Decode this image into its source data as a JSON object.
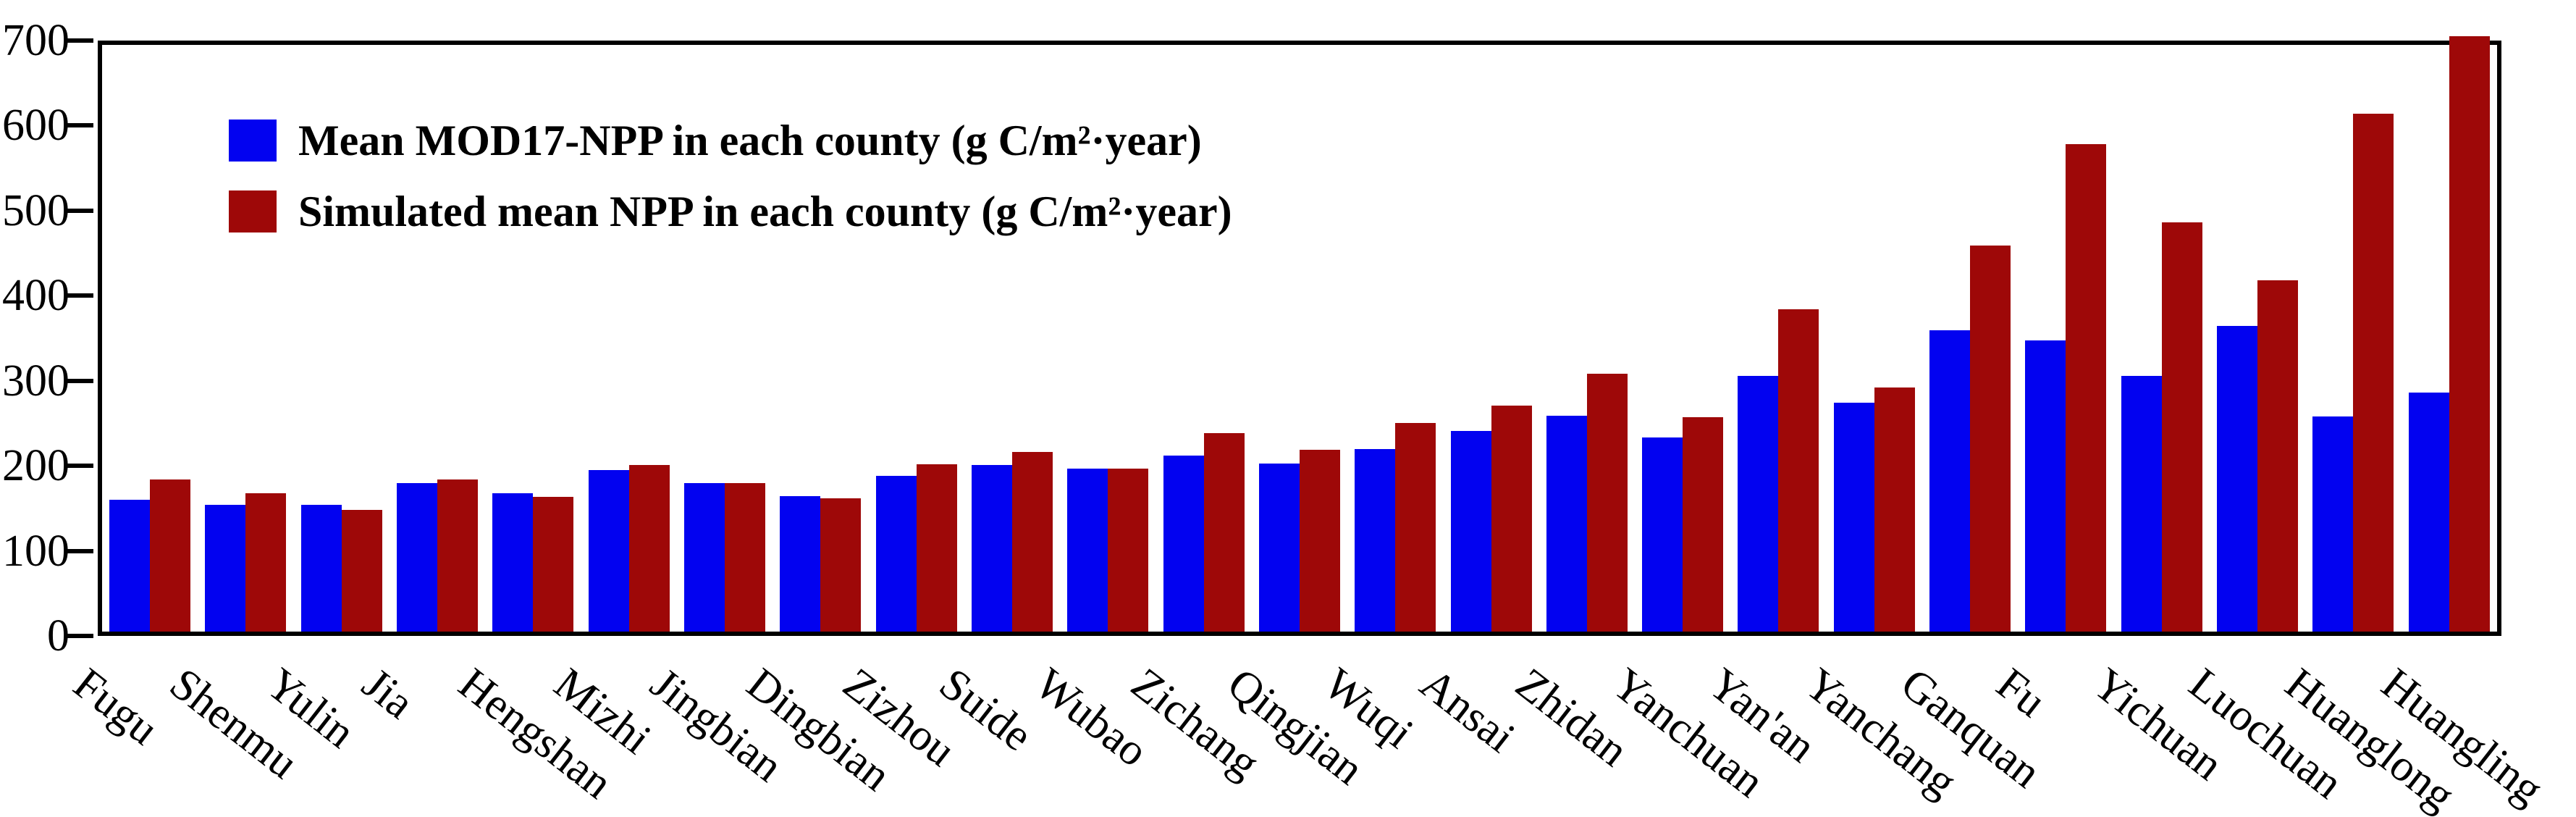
{
  "figure": {
    "background": "#ffffff",
    "axis_color": "#000000"
  },
  "legend": {
    "position": "top-left-inside",
    "items": [
      {
        "label": "Mean MOD17-NPP in each county (g C/m²·year)",
        "color": "#0202f0"
      },
      {
        "label": "Simulated mean NPP in each county (g C/m²·year)",
        "color": "#9e0808"
      }
    ]
  },
  "chart_data": {
    "type": "bar",
    "title": "",
    "xlabel": "",
    "ylabel": "",
    "ylim": [
      0,
      700
    ],
    "yticks": [
      0,
      100,
      200,
      300,
      400,
      500,
      600,
      700
    ],
    "grid": false,
    "legend_position": "upper left inside plot",
    "categories": [
      "Fugu",
      "Shenmu",
      "Yulin",
      "Jia",
      "Hengshan",
      "Mizhi",
      "Jingbian",
      "Dingbian",
      "Zizhou",
      "Suide",
      "Wubao",
      "Zichang",
      "Qingjian",
      "Wuqi",
      "Ansai",
      "Zhidan",
      "Yanchuan",
      "Yan'an",
      "Yanchang",
      "Ganquan",
      "Fu",
      "Yichuan",
      "Luochuan",
      "Huanglong",
      "Huangling"
    ],
    "series": [
      {
        "name": "Mean MOD17-NPP in each county (g C/m²·year)",
        "color": "#0202f0",
        "values": [
          155,
          149,
          149,
          175,
          163,
          190,
          175,
          159,
          183,
          196,
          192,
          207,
          198,
          215,
          236,
          254,
          228,
          301,
          269,
          354,
          342,
          301,
          359,
          253,
          281
        ]
      },
      {
        "name": "Simulated mean NPP in each county (g C/m²·year)",
        "color": "#9e0808",
        "values": [
          179,
          163,
          143,
          179,
          158,
          196,
          175,
          157,
          197,
          211,
          192,
          233,
          214,
          245,
          266,
          303,
          252,
          379,
          287,
          454,
          573,
          481,
          413,
          609,
          700
        ]
      }
    ],
    "note": "Huangling simulated bar reaches the top frame (~700, clipped)"
  }
}
